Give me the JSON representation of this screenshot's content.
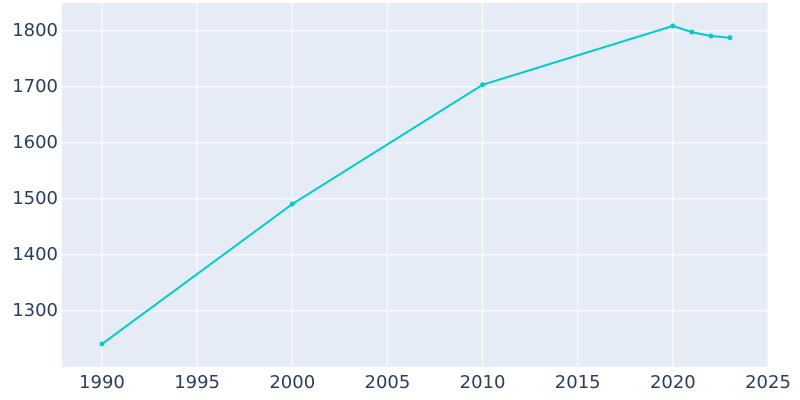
{
  "chart_data": {
    "type": "line",
    "x": [
      1990,
      2000,
      2010,
      2020,
      2021,
      2022,
      2023
    ],
    "series": [
      {
        "color": "#00cccc",
        "values": [
          1241,
          1491,
          1704,
          1809,
          1798,
          1791,
          1788
        ]
      }
    ],
    "xlim": [
      1987.9,
      2025
    ],
    "xticks": [
      1990,
      1995,
      2000,
      2005,
      2010,
      2015,
      2020,
      2025
    ],
    "ylim": [
      1200,
      1850
    ],
    "yticks": [
      1300,
      1400,
      1500,
      1600,
      1700,
      1800
    ],
    "grid": true
  }
}
